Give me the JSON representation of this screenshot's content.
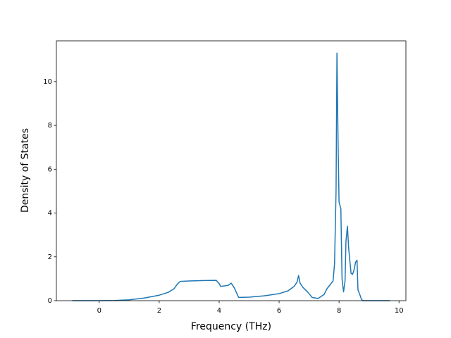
{
  "chart_data": {
    "type": "line",
    "xlabel": "Frequency (THz)",
    "ylabel": "Density of States",
    "x": [
      -0.9,
      0,
      0.5,
      1,
      1.5,
      2,
      2.3,
      2.5,
      2.6,
      2.7,
      3,
      3.5,
      3.9,
      4,
      4.05,
      4.3,
      4.4,
      4.5,
      4.6,
      4.65,
      5,
      5.5,
      6,
      6.3,
      6.5,
      6.6,
      6.65,
      6.7,
      6.8,
      6.95,
      7.1,
      7.3,
      7.5,
      7.6,
      7.8,
      7.85,
      7.9,
      7.93,
      7.97,
      8.0,
      8.06,
      8.1,
      8.15,
      8.2,
      8.23,
      8.28,
      8.32,
      8.4,
      8.45,
      8.5,
      8.55,
      8.6,
      8.63,
      8.7,
      8.75,
      8.8,
      9.7
    ],
    "series": [
      {
        "color": "#1f77b4",
        "values": [
          0,
          0,
          0.01,
          0.04,
          0.12,
          0.25,
          0.38,
          0.55,
          0.75,
          0.88,
          0.9,
          0.92,
          0.93,
          0.78,
          0.65,
          0.7,
          0.8,
          0.6,
          0.3,
          0.15,
          0.16,
          0.22,
          0.32,
          0.45,
          0.65,
          0.85,
          1.15,
          0.8,
          0.6,
          0.4,
          0.15,
          0.1,
          0.28,
          0.55,
          0.9,
          1.7,
          5,
          11.3,
          7,
          4.5,
          4.2,
          1.0,
          0.4,
          0.9,
          2.7,
          3.4,
          2.4,
          1.25,
          1.2,
          1.4,
          1.75,
          1.85,
          0.5,
          0.25,
          0.05,
          0,
          0
        ]
      }
    ],
    "xlim": [
      -1.43,
      10.23
    ],
    "ylim": [
      0,
      11.86
    ],
    "xticks": [
      0,
      2,
      4,
      6,
      8,
      10
    ],
    "yticks": [
      0,
      2,
      4,
      6,
      8,
      10
    ]
  }
}
